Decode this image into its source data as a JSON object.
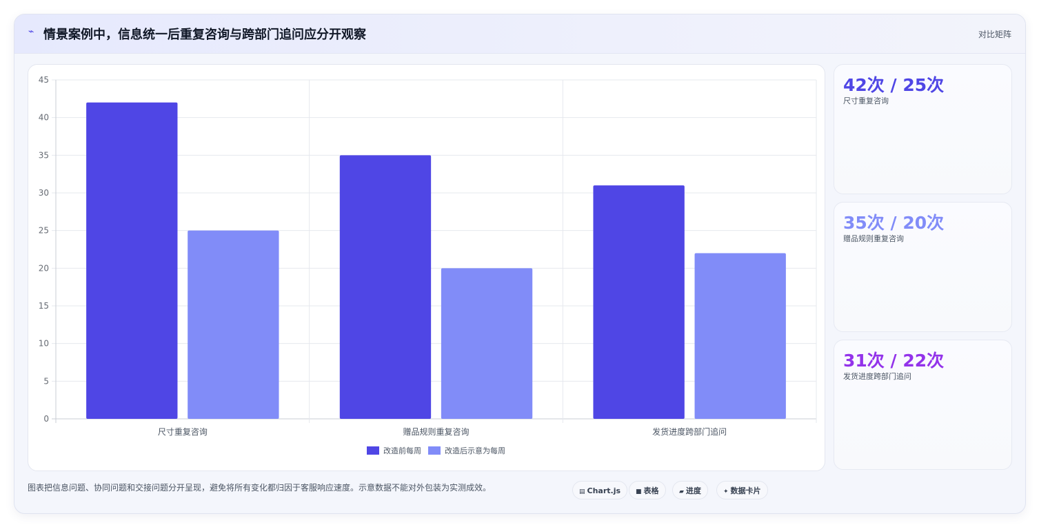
{
  "header": {
    "icon": "chart-trend-icon",
    "title": "情景案例中，信息统一后重复咨询与跨部门追问应分开观察",
    "right_label": "对比矩阵"
  },
  "chart_data": {
    "type": "bar",
    "categories": [
      "尺寸重复咨询",
      "赠品规则重复咨询",
      "发货进度跨部门追问"
    ],
    "series": [
      {
        "name": "改造前每周",
        "values": [
          42,
          35,
          31
        ],
        "color": "#4f46e5"
      },
      {
        "name": "改造后示意为每周",
        "values": [
          25,
          20,
          22
        ],
        "color": "#818cf8"
      }
    ],
    "ylim": [
      0,
      45
    ],
    "yticks": [
      0,
      5,
      10,
      15,
      20,
      25,
      30,
      35,
      40,
      45
    ],
    "grid": true,
    "legend_position": "bottom"
  },
  "stats": [
    {
      "value": "42次 / 25次",
      "label": "尺寸重复咨询",
      "color": "#4f46e5"
    },
    {
      "value": "35次 / 20次",
      "label": "赠品规则重复咨询",
      "color": "#818cf8"
    },
    {
      "value": "31次 / 22次",
      "label": "发货进度跨部门追问",
      "color": "#9333ea"
    }
  ],
  "footer": {
    "note": "图表把信息问题、协同问题和交接问题分开呈现，避免将所有变化都归因于客服响应速度。示意数据不能对外包装为实测成效。",
    "chips": [
      {
        "icon": "▤",
        "label": "Chart.js",
        "icon_name": "chart-icon"
      },
      {
        "icon": "■",
        "label": "表格",
        "icon_name": "table-icon"
      },
      {
        "icon": "▰",
        "label": "进度",
        "icon_name": "progress-icon"
      },
      {
        "icon": "✦",
        "label": "数据卡片",
        "icon_name": "sparkle-icon"
      }
    ]
  }
}
